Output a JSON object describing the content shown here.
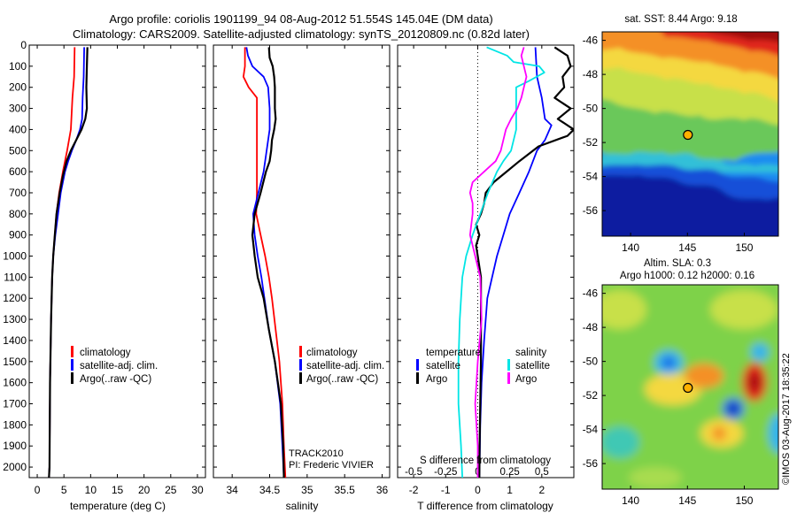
{
  "header": {
    "title_line1": "Argo profile: coriolis 1901199_94 08-Aug-2012 51.554S 145.04E (DM data)",
    "title_line2": "Climatology: CARS2009. Satellite-adjusted climatology: synTS_20120809.nc (0.82d later)"
  },
  "colors": {
    "climatology": "#ff0000",
    "satellite": "#0000ff",
    "argo": "#000000",
    "sal_satellite": "#00e5e5",
    "sal_argo": "#ff00ff"
  },
  "depth_axis": {
    "ticks": [
      "0",
      "100",
      "200",
      "300",
      "400",
      "500",
      "600",
      "700",
      "800",
      "900",
      "1000",
      "1100",
      "1200",
      "1300",
      "1400",
      "1500",
      "1600",
      "1700",
      "1800",
      "1900",
      "2000"
    ],
    "ylim": [
      0,
      2050
    ]
  },
  "chart_data": [
    {
      "id": "temperature",
      "type": "line",
      "xlabel": "temperature (deg C)",
      "xlim": [
        -1.5,
        31.5
      ],
      "xticks": [
        "0",
        "5",
        "10",
        "15",
        "20",
        "25",
        "30"
      ],
      "xtick_values": [
        0,
        5,
        10,
        15,
        20,
        25,
        30
      ],
      "legend": {
        "position": "lower-middle",
        "entries": [
          "climatology",
          "satellite-adj. clim.",
          "Argo(..raw -QC)"
        ]
      },
      "series": [
        {
          "name": "climatology",
          "color": "#ff0000",
          "points": [
            [
              7.0,
              10
            ],
            [
              6.9,
              150
            ],
            [
              6.6,
              250
            ],
            [
              6.3,
              400
            ],
            [
              5.6,
              500
            ],
            [
              4.8,
              600
            ],
            [
              4.1,
              700
            ],
            [
              3.6,
              800
            ],
            [
              3.3,
              900
            ],
            [
              3.0,
              1000
            ],
            [
              2.8,
              1100
            ],
            [
              2.6,
              1300
            ],
            [
              2.4,
              1600
            ],
            [
              2.3,
              2000
            ],
            [
              2.2,
              2050
            ]
          ]
        },
        {
          "name": "satellite-adj. clim.",
          "color": "#0000ff",
          "points": [
            [
              8.8,
              10
            ],
            [
              8.7,
              150
            ],
            [
              8.5,
              250
            ],
            [
              8.4,
              350
            ],
            [
              8.0,
              400
            ],
            [
              7.3,
              450
            ],
            [
              6.5,
              500
            ],
            [
              5.8,
              550
            ],
            [
              5.2,
              600
            ],
            [
              4.4,
              700
            ],
            [
              3.9,
              800
            ],
            [
              3.4,
              900
            ],
            [
              3.0,
              1000
            ],
            [
              2.8,
              1100
            ],
            [
              2.6,
              1300
            ],
            [
              2.4,
              1600
            ],
            [
              2.3,
              2000
            ],
            [
              2.2,
              2050
            ]
          ]
        },
        {
          "name": "Argo(..raw -QC)",
          "color": "#000000",
          "points": [
            [
              9.4,
              10
            ],
            [
              9.3,
              100
            ],
            [
              9.2,
              200
            ],
            [
              9.3,
              300
            ],
            [
              9.0,
              350
            ],
            [
              8.3,
              400
            ],
            [
              7.3,
              450
            ],
            [
              6.3,
              500
            ],
            [
              5.5,
              550
            ],
            [
              4.8,
              620
            ],
            [
              4.2,
              700
            ],
            [
              3.6,
              800
            ],
            [
              3.3,
              900
            ],
            [
              3.0,
              1000
            ],
            [
              2.8,
              1100
            ],
            [
              2.6,
              1300
            ],
            [
              2.4,
              1600
            ],
            [
              2.3,
              2000
            ],
            [
              2.2,
              2050
            ]
          ]
        }
      ]
    },
    {
      "id": "salinity",
      "type": "line",
      "xlabel": "salinity",
      "xlim": [
        33.75,
        36.1
      ],
      "xticks": [
        "34",
        "34.5",
        "35",
        "35.5",
        "36"
      ],
      "xtick_values": [
        34,
        34.5,
        35,
        35.5,
        36
      ],
      "legend": {
        "position": "lower-right",
        "entries": [
          "climatology",
          "satellite-adj. clim.",
          "Argo(..raw -QC)"
        ]
      },
      "annotation": [
        "TRACK2010",
        "PI: Frederic VIVIER"
      ],
      "series": [
        {
          "name": "climatology",
          "color": "#ff0000",
          "points": [
            [
              34.17,
              10
            ],
            [
              34.17,
              100
            ],
            [
              34.15,
              150
            ],
            [
              34.22,
              200
            ],
            [
              34.33,
              250
            ],
            [
              34.33,
              500
            ],
            [
              34.33,
              700
            ],
            [
              34.32,
              800
            ],
            [
              34.38,
              900
            ],
            [
              34.44,
              1000
            ],
            [
              34.49,
              1100
            ],
            [
              34.53,
              1200
            ],
            [
              34.58,
              1350
            ],
            [
              34.63,
              1500
            ],
            [
              34.67,
              1700
            ],
            [
              34.69,
              1900
            ],
            [
              34.71,
              2050
            ]
          ]
        },
        {
          "name": "satellite-adj. clim.",
          "color": "#0000ff",
          "points": [
            [
              34.19,
              10
            ],
            [
              34.21,
              50
            ],
            [
              34.27,
              100
            ],
            [
              34.42,
              150
            ],
            [
              34.48,
              200
            ],
            [
              34.5,
              300
            ],
            [
              34.5,
              400
            ],
            [
              34.46,
              500
            ],
            [
              34.42,
              600
            ],
            [
              34.35,
              700
            ],
            [
              34.28,
              800
            ],
            [
              34.29,
              850
            ],
            [
              34.3,
              900
            ],
            [
              34.34,
              1000
            ],
            [
              34.39,
              1100
            ],
            [
              34.43,
              1200
            ],
            [
              34.49,
              1350
            ],
            [
              34.57,
              1500
            ],
            [
              34.64,
              1700
            ],
            [
              34.67,
              1900
            ],
            [
              34.69,
              2050
            ]
          ]
        },
        {
          "name": "Argo(..raw -QC)",
          "color": "#000000",
          "points": [
            [
              34.49,
              10
            ],
            [
              34.5,
              60
            ],
            [
              34.54,
              100
            ],
            [
              34.56,
              150
            ],
            [
              34.57,
              200
            ],
            [
              34.57,
              300
            ],
            [
              34.58,
              350
            ],
            [
              34.56,
              400
            ],
            [
              34.53,
              450
            ],
            [
              34.52,
              500
            ],
            [
              34.5,
              550
            ],
            [
              34.45,
              600
            ],
            [
              34.38,
              700
            ],
            [
              34.3,
              800
            ],
            [
              34.27,
              900
            ],
            [
              34.3,
              1000
            ],
            [
              34.34,
              1100
            ],
            [
              34.42,
              1200
            ],
            [
              34.49,
              1350
            ],
            [
              34.57,
              1500
            ],
            [
              34.65,
              1700
            ],
            [
              34.68,
              1900
            ],
            [
              34.69,
              2050
            ]
          ]
        }
      ]
    },
    {
      "id": "difference",
      "type": "line",
      "xlabel": "T difference from climatology",
      "xlabel_top": "S difference from climatology",
      "xlim": [
        -2.5,
        3.0
      ],
      "xticks": [
        "-2",
        "-1",
        "0",
        "1",
        "2"
      ],
      "xtick_values": [
        -2,
        -1,
        0,
        1,
        2
      ],
      "sticks": [
        "-0.5",
        "-0.25",
        "0",
        "0.25",
        "0.5"
      ],
      "stick_values": [
        -0.5,
        -0.25,
        0,
        0.25,
        0.5
      ],
      "legend": {
        "position": "lower-middle",
        "headers": [
          "temperature",
          "salinity"
        ],
        "entries": [
          "satellite",
          "Argo",
          "satellite",
          "Argo"
        ]
      },
      "series": [
        {
          "name": "satellite",
          "group": "temperature",
          "color": "#0000ff",
          "points": [
            [
              1.8,
              10
            ],
            [
              1.85,
              150
            ],
            [
              2.0,
              250
            ],
            [
              2.1,
              350
            ],
            [
              2.3,
              380
            ],
            [
              2.1,
              450
            ],
            [
              1.85,
              500
            ],
            [
              1.6,
              600
            ],
            [
              1.3,
              700
            ],
            [
              1.0,
              800
            ],
            [
              0.8,
              900
            ],
            [
              0.6,
              1000
            ],
            [
              0.45,
              1100
            ],
            [
              0.3,
              1200
            ],
            [
              0.2,
              1400
            ],
            [
              0.12,
              1600
            ],
            [
              0.08,
              1800
            ],
            [
              0.06,
              2000
            ],
            [
              0.05,
              2050
            ]
          ]
        },
        {
          "name": "Argo",
          "group": "temperature",
          "color": "#000000",
          "points": [
            [
              2.4,
              10
            ],
            [
              2.6,
              30
            ],
            [
              2.8,
              50
            ],
            [
              2.9,
              100
            ],
            [
              2.65,
              150
            ],
            [
              2.7,
              200
            ],
            [
              2.4,
              250
            ],
            [
              2.9,
              300
            ],
            [
              2.5,
              350
            ],
            [
              3.0,
              400
            ],
            [
              2.8,
              430
            ],
            [
              1.9,
              480
            ],
            [
              1.3,
              550
            ],
            [
              0.9,
              600
            ],
            [
              0.5,
              650
            ],
            [
              0.25,
              700
            ],
            [
              0.2,
              750
            ],
            [
              0.1,
              800
            ],
            [
              -0.05,
              850
            ],
            [
              0.05,
              900
            ],
            [
              -0.05,
              950
            ],
            [
              0.0,
              1000
            ],
            [
              0.05,
              1050
            ],
            [
              0.1,
              1100
            ],
            [
              0.1,
              1300
            ],
            [
              0.1,
              1500
            ],
            [
              0.08,
              1700
            ],
            [
              0.06,
              1900
            ],
            [
              0.05,
              2050
            ]
          ]
        },
        {
          "name": "satellite",
          "group": "salinity",
          "color": "#00e5e5",
          "points": [
            [
              0.07,
              10
            ],
            [
              0.23,
              50
            ],
            [
              0.28,
              80
            ],
            [
              0.48,
              100
            ],
            [
              0.52,
              130
            ],
            [
              0.4,
              170
            ],
            [
              0.3,
              200
            ],
            [
              0.3,
              300
            ],
            [
              0.3,
              400
            ],
            [
              0.26,
              500
            ],
            [
              0.2,
              550
            ],
            [
              0.15,
              600
            ],
            [
              0.08,
              700
            ],
            [
              0.02,
              800
            ],
            [
              -0.04,
              900
            ],
            [
              -0.09,
              1000
            ],
            [
              -0.12,
              1100
            ],
            [
              -0.14,
              1300
            ],
            [
              -0.15,
              1500
            ],
            [
              -0.15,
              1700
            ],
            [
              -0.13,
              1900
            ],
            [
              -0.12,
              2050
            ]
          ]
        },
        {
          "name": "Argo",
          "group": "salinity",
          "color": "#ff00ff",
          "points": [
            [
              0.36,
              10
            ],
            [
              0.34,
              50
            ],
            [
              0.36,
              100
            ],
            [
              0.38,
              150
            ],
            [
              0.36,
              200
            ],
            [
              0.34,
              250
            ],
            [
              0.31,
              300
            ],
            [
              0.26,
              350
            ],
            [
              0.22,
              400
            ],
            [
              0.2,
              450
            ],
            [
              0.18,
              500
            ],
            [
              0.14,
              550
            ],
            [
              0.05,
              600
            ],
            [
              -0.04,
              650
            ],
            [
              -0.06,
              700
            ],
            [
              -0.04,
              750
            ],
            [
              -0.04,
              800
            ],
            [
              -0.06,
              900
            ],
            [
              -0.02,
              1000
            ],
            [
              0.02,
              1100
            ],
            [
              0.03,
              1300
            ],
            [
              0.0,
              1500
            ],
            [
              -0.02,
              1700
            ],
            [
              0.0,
              1900
            ],
            [
              0.0,
              2050
            ]
          ]
        }
      ]
    },
    {
      "id": "sst_map",
      "type": "heatmap",
      "title": "sat. SST: 8.44  Argo: 9.18",
      "xlim": [
        137.5,
        153
      ],
      "ylim": [
        -57.5,
        -45.5
      ],
      "xticks": [
        "140",
        "145",
        "150"
      ],
      "xtick_values": [
        140,
        145,
        150
      ],
      "yticks": [
        "-46",
        "-48",
        "-50",
        "-52",
        "-54",
        "-56"
      ],
      "ytick_values": [
        -46,
        -48,
        -50,
        -52,
        -54,
        -56
      ],
      "marker": {
        "lon": 145.04,
        "lat": -51.554
      }
    },
    {
      "id": "sla_map",
      "type": "heatmap",
      "title_line1": "Altim. SLA: 0.3",
      "title_line2": "Argo h1000: 0.12 h2000: 0.16",
      "xlim": [
        137.5,
        153
      ],
      "ylim": [
        -57.5,
        -45.5
      ],
      "xticks": [
        "140",
        "145",
        "150"
      ],
      "xtick_values": [
        140,
        145,
        150
      ],
      "yticks": [
        "-46",
        "-48",
        "-50",
        "-52",
        "-54",
        "-56"
      ],
      "ytick_values": [
        -46,
        -48,
        -50,
        -52,
        -54,
        -56
      ],
      "marker": {
        "lon": 145.04,
        "lat": -51.554
      }
    }
  ],
  "footer": {
    "credit": "©IMOS 03-Aug-2017 18:35:22"
  }
}
